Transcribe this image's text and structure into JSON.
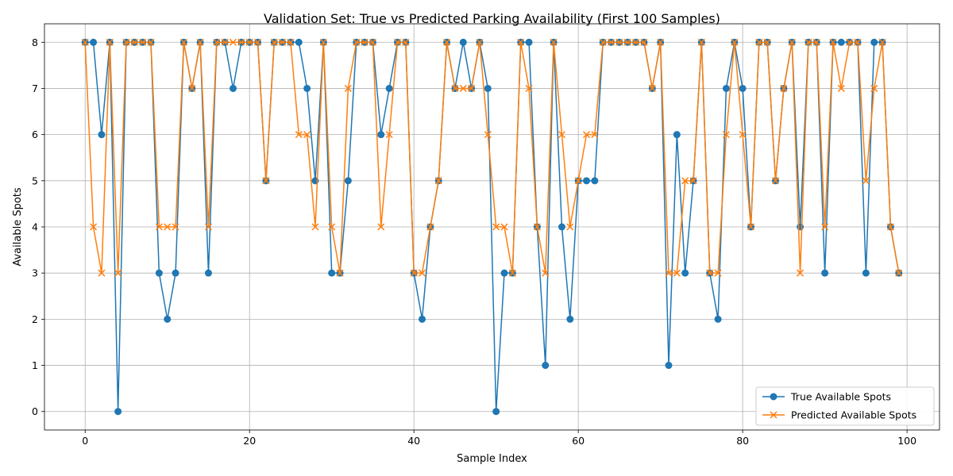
{
  "chart_data": {
    "type": "line",
    "title": "Validation Set: True vs Predicted Parking Availability (First 100 Samples)",
    "xlabel": "Sample Index",
    "ylabel": "Available Spots",
    "xlim": [
      -4.95,
      103.95
    ],
    "ylim": [
      -0.4,
      8.4
    ],
    "xticks": [
      0,
      20,
      40,
      60,
      80,
      100
    ],
    "yticks": [
      0,
      1,
      2,
      3,
      4,
      5,
      6,
      7,
      8
    ],
    "grid": true,
    "legend_position": "bottom-right",
    "x": [
      0,
      1,
      2,
      3,
      4,
      5,
      6,
      7,
      8,
      9,
      10,
      11,
      12,
      13,
      14,
      15,
      16,
      17,
      18,
      19,
      20,
      21,
      22,
      23,
      24,
      25,
      26,
      27,
      28,
      29,
      30,
      31,
      32,
      33,
      34,
      35,
      36,
      37,
      38,
      39,
      40,
      41,
      42,
      43,
      44,
      45,
      46,
      47,
      48,
      49,
      50,
      51,
      52,
      53,
      54,
      55,
      56,
      57,
      58,
      59,
      60,
      61,
      62,
      63,
      64,
      65,
      66,
      67,
      68,
      69,
      70,
      71,
      72,
      73,
      74,
      75,
      76,
      77,
      78,
      79,
      80,
      81,
      82,
      83,
      84,
      85,
      86,
      87,
      88,
      89,
      90,
      91,
      92,
      93,
      94,
      95,
      96,
      97,
      98,
      99
    ],
    "series": [
      {
        "name": "True Available Spots",
        "color": "#1f77b4",
        "marker": "circle",
        "values": [
          8,
          8,
          6,
          8,
          0,
          8,
          8,
          8,
          8,
          3,
          2,
          3,
          8,
          7,
          8,
          3,
          8,
          8,
          7,
          8,
          8,
          8,
          5,
          8,
          8,
          8,
          8,
          7,
          5,
          8,
          3,
          3,
          5,
          8,
          8,
          8,
          6,
          7,
          8,
          8,
          3,
          2,
          4,
          5,
          8,
          7,
          8,
          7,
          8,
          7,
          0,
          3,
          3,
          8,
          8,
          4,
          1,
          8,
          4,
          2,
          5,
          5,
          5,
          8,
          8,
          8,
          8,
          8,
          8,
          7,
          8,
          1,
          6,
          3,
          5,
          8,
          3,
          2,
          7,
          8,
          7,
          4,
          8,
          8,
          5,
          7,
          8,
          4,
          8,
          8,
          3,
          8,
          8,
          8,
          8,
          3,
          8,
          8,
          4,
          3
        ]
      },
      {
        "name": "Predicted Available Spots",
        "color": "#ff7f0e",
        "marker": "x",
        "values": [
          8,
          4,
          3,
          8,
          3,
          8,
          8,
          8,
          8,
          4,
          4,
          4,
          8,
          7,
          8,
          4,
          8,
          8,
          8,
          8,
          8,
          8,
          5,
          8,
          8,
          8,
          6,
          6,
          4,
          8,
          4,
          3,
          7,
          8,
          8,
          8,
          4,
          6,
          8,
          8,
          3,
          3,
          4,
          5,
          8,
          7,
          7,
          7,
          8,
          6,
          4,
          4,
          3,
          8,
          7,
          4,
          3,
          8,
          6,
          4,
          5,
          6,
          6,
          8,
          8,
          8,
          8,
          8,
          8,
          7,
          8,
          3,
          3,
          5,
          5,
          8,
          3,
          3,
          6,
          8,
          6,
          4,
          8,
          8,
          5,
          7,
          8,
          3,
          8,
          8,
          4,
          8,
          7,
          8,
          8,
          5,
          7,
          8,
          4,
          3
        ]
      }
    ]
  }
}
